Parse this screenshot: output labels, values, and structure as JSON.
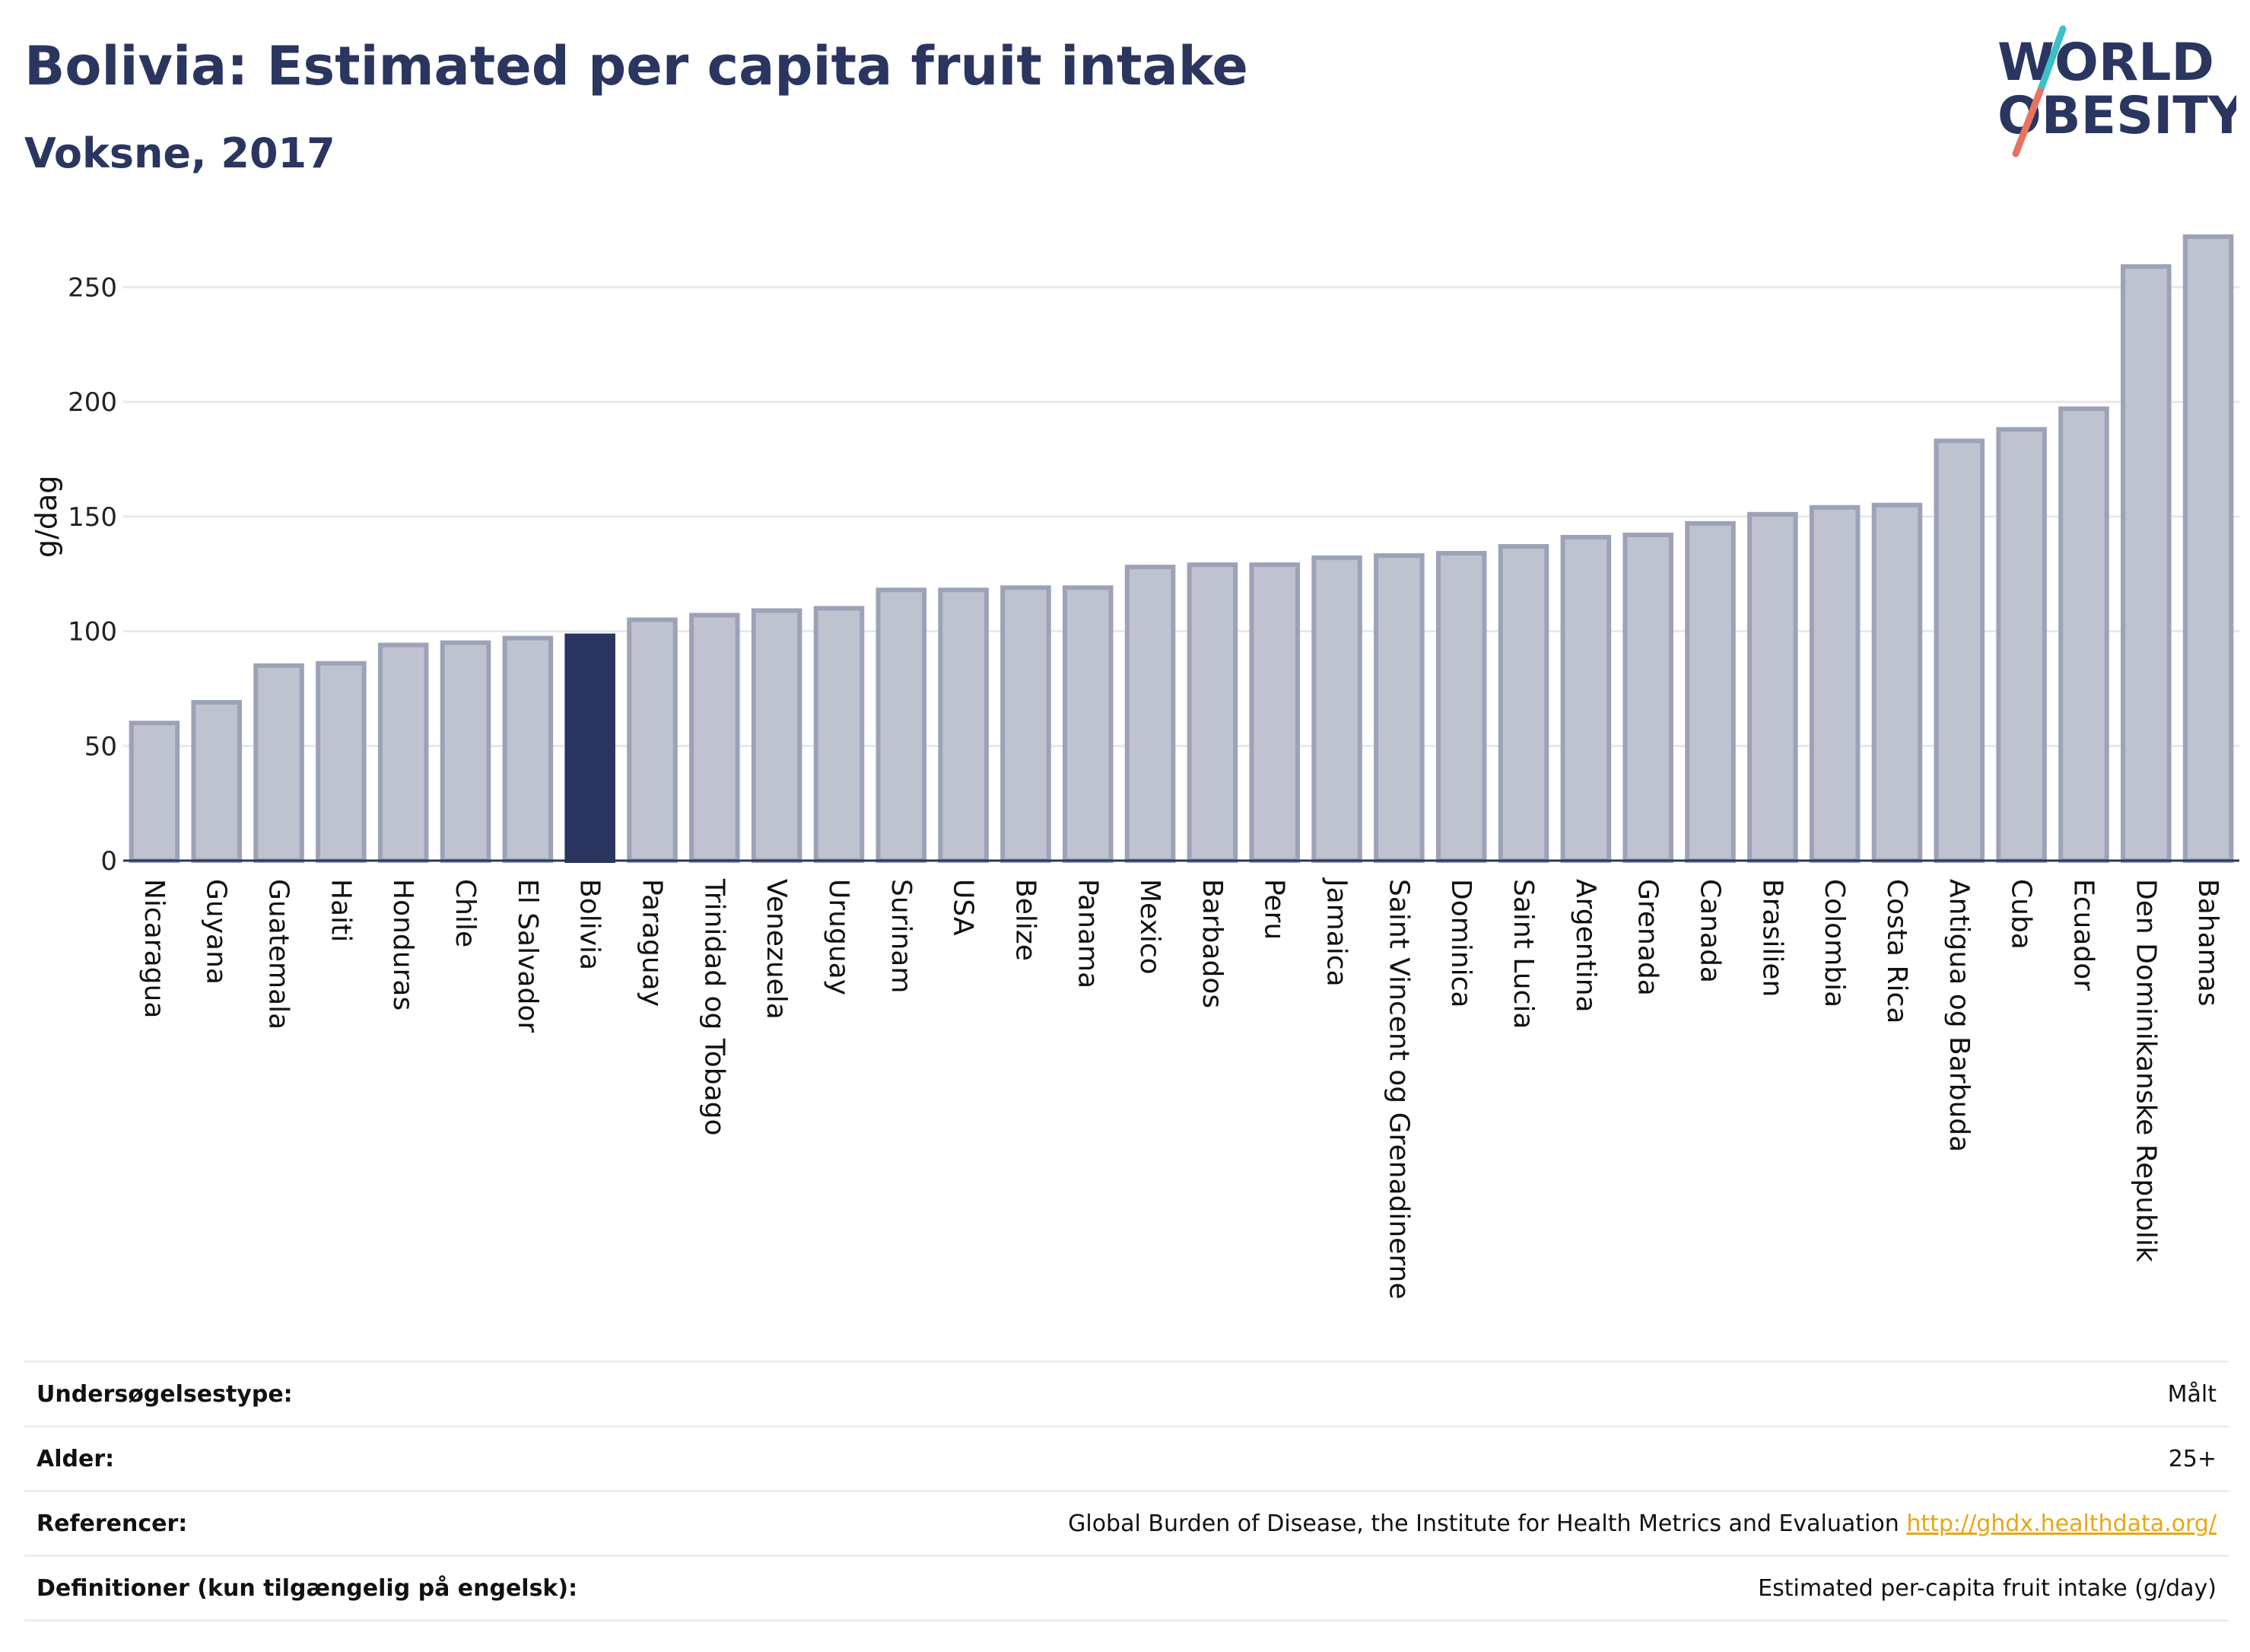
{
  "header": {
    "title": "Bolivia: Estimated per capita fruit intake",
    "subtitle": "Voksne, 2017"
  },
  "logo": {
    "line1": "WORLD",
    "line2": "OBESITY",
    "icon": "world-obesity-logo",
    "colors": {
      "text": "#2a3560",
      "slash_top": "#3bbfc8",
      "slash_bottom": "#e8735f"
    }
  },
  "colors": {
    "highlight_bar": "#2a3560",
    "bar_fill": "#bfc2cf",
    "bar_stroke": "#9da2b8",
    "grid": "#e6e8ee",
    "axis": "#2a3560",
    "link": "#e8a617"
  },
  "chart_data": {
    "type": "bar",
    "title": "Bolivia: Estimated per capita fruit intake",
    "subtitle": "Voksne, 2017",
    "xlabel": "",
    "ylabel": "g/dag",
    "ylim": [
      0,
      275
    ],
    "yticks": [
      0,
      50,
      100,
      150,
      200,
      250
    ],
    "grid": true,
    "highlight": "Bolivia",
    "categories": [
      "Nicaragua",
      "Guyana",
      "Guatemala",
      "Haiti",
      "Honduras",
      "Chile",
      "El Salvador",
      "Bolivia",
      "Paraguay",
      "Trinidad og Tobago",
      "Venezuela",
      "Uruguay",
      "Surinam",
      "USA",
      "Belize",
      "Panama",
      "Mexico",
      "Barbados",
      "Peru",
      "Jamaica",
      "Saint Vincent og Grenadinerne",
      "Dominica",
      "Saint Lucia",
      "Argentina",
      "Grenada",
      "Canada",
      "Brasilien",
      "Colombia",
      "Costa Rica",
      "Antigua og Barbuda",
      "Cuba",
      "Ecuador",
      "Den Dominikanske Republik",
      "Bahamas"
    ],
    "values": [
      60,
      69,
      85,
      86,
      94,
      95,
      97,
      98,
      105,
      107,
      109,
      110,
      118,
      118,
      119,
      119,
      128,
      129,
      129,
      132,
      133,
      134,
      137,
      141,
      142,
      147,
      151,
      154,
      155,
      183,
      188,
      197,
      259,
      272
    ]
  },
  "info": {
    "rows": [
      {
        "label": "Undersøgelsestype:",
        "value": "Målt"
      },
      {
        "label": "Alder:",
        "value": "25+"
      },
      {
        "label": "Referencer:",
        "value": "Global Burden of Disease, the Institute for Health Metrics and Evaluation",
        "link": "http://ghdx.healthdata.org/"
      },
      {
        "label": "Definitioner (kun tilgængelig på engelsk):",
        "value": "Estimated per-capita fruit intake (g/day)"
      }
    ]
  }
}
